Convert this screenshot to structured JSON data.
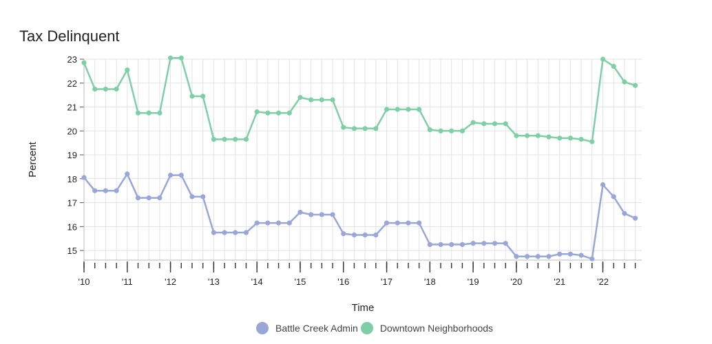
{
  "chart_data": {
    "type": "line",
    "title": "Tax Delinquent",
    "xlabel": "Time",
    "ylabel": "Percent",
    "ylim": [
      14.6,
      23
    ],
    "yticks": [
      15,
      16,
      17,
      18,
      19,
      20,
      21,
      22,
      23
    ],
    "xlim": [
      2010,
      2022.9
    ],
    "xticks": [
      {
        "x": 2010,
        "label": "'10"
      },
      {
        "x": 2011,
        "label": "'11"
      },
      {
        "x": 2012,
        "label": "'12"
      },
      {
        "x": 2013,
        "label": "'13"
      },
      {
        "x": 2014,
        "label": "'14"
      },
      {
        "x": 2015,
        "label": "'15"
      },
      {
        "x": 2016,
        "label": "'16"
      },
      {
        "x": 2017,
        "label": "'17"
      },
      {
        "x": 2018,
        "label": "'18"
      },
      {
        "x": 2019,
        "label": "'19"
      },
      {
        "x": 2020,
        "label": "'20"
      },
      {
        "x": 2021,
        "label": "'21"
      },
      {
        "x": 2022,
        "label": "'22"
      }
    ],
    "grid": true,
    "legend_position": "bottom",
    "x": [
      2010.0,
      2010.25,
      2010.5,
      2010.75,
      2011.0,
      2011.25,
      2011.5,
      2011.75,
      2012.0,
      2012.25,
      2012.5,
      2012.75,
      2013.0,
      2013.25,
      2013.5,
      2013.75,
      2014.0,
      2014.25,
      2014.5,
      2014.75,
      2015.0,
      2015.25,
      2015.5,
      2015.75,
      2016.0,
      2016.25,
      2016.5,
      2016.75,
      2017.0,
      2017.25,
      2017.5,
      2017.75,
      2018.0,
      2018.25,
      2018.5,
      2018.75,
      2019.0,
      2019.25,
      2019.5,
      2019.75,
      2020.0,
      2020.25,
      2020.5,
      2020.75,
      2021.0,
      2021.25,
      2021.5,
      2021.75,
      2022.0,
      2022.25,
      2022.5,
      2022.75
    ],
    "series": [
      {
        "name": "Battle Creek Admin",
        "color": "#98a6d8",
        "values": [
          18.05,
          17.5,
          17.5,
          17.5,
          18.2,
          17.2,
          17.2,
          17.2,
          18.15,
          18.15,
          17.25,
          17.25,
          15.75,
          15.75,
          15.75,
          15.75,
          16.15,
          16.15,
          16.15,
          16.15,
          16.6,
          16.5,
          16.5,
          16.5,
          15.7,
          15.65,
          15.65,
          15.65,
          16.15,
          16.15,
          16.15,
          16.15,
          15.25,
          15.25,
          15.25,
          15.25,
          15.3,
          15.3,
          15.3,
          15.3,
          14.75,
          14.75,
          14.75,
          14.75,
          14.85,
          14.85,
          14.8,
          14.65,
          17.75,
          17.25,
          16.55,
          16.35
        ]
      },
      {
        "name": "Downtown Neighborhoods",
        "color": "#7fcfa6",
        "values": [
          22.85,
          21.75,
          21.75,
          21.75,
          22.55,
          20.75,
          20.75,
          20.75,
          23.05,
          23.05,
          21.45,
          21.45,
          19.65,
          19.65,
          19.65,
          19.65,
          20.8,
          20.75,
          20.75,
          20.75,
          21.4,
          21.3,
          21.3,
          21.3,
          20.15,
          20.1,
          20.1,
          20.1,
          20.9,
          20.9,
          20.9,
          20.9,
          20.05,
          20.0,
          20.0,
          20.0,
          20.35,
          20.3,
          20.3,
          20.3,
          19.8,
          19.8,
          19.8,
          19.75,
          19.7,
          19.7,
          19.65,
          19.55,
          23.0,
          22.7,
          22.05,
          21.9
        ]
      }
    ]
  }
}
